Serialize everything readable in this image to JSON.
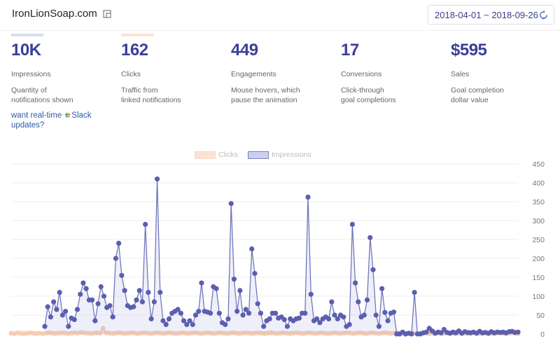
{
  "header": {
    "site_name": "IronLionSoap.com",
    "date_range": "2018-04-01 ~ 2018-09-26"
  },
  "metrics": [
    {
      "value": "10K",
      "label": "Impressions",
      "desc": "Quantity of\nnotifications shown",
      "color": "#d8dcf0"
    },
    {
      "value": "162",
      "label": "Clicks",
      "desc": "Traffic from\nlinked notifications",
      "color": "#fbe3d4"
    },
    {
      "value": "449",
      "label": "Engagements",
      "desc": "Mouse hovers, which\npause the animation",
      "color": ""
    },
    {
      "value": "17",
      "label": "Conversions",
      "desc": "Click-through\ngoal completions",
      "color": ""
    },
    {
      "value": "$595",
      "label": "Sales",
      "desc": "Goal completion\ndollar value",
      "color": ""
    }
  ],
  "promo": {
    "text_before": "want real-time ",
    "link_text": "Slack\nupdates?",
    "icon": "slack-icon"
  },
  "legend": [
    {
      "name": "Clicks",
      "color": "#f8d9c6"
    },
    {
      "name": "Impressions",
      "color": "#a9acd8"
    }
  ],
  "chart_data": {
    "type": "line",
    "ylim": [
      0,
      450
    ],
    "yticks": [
      0,
      50,
      100,
      150,
      200,
      250,
      300,
      350,
      400,
      450
    ],
    "series": [
      {
        "name": "Impressions",
        "color": "#4a4fa0",
        "values": [
          20,
          72,
          45,
          85,
          65,
          110,
          50,
          60,
          20,
          42,
          38,
          65,
          105,
          135,
          120,
          90,
          90,
          35,
          80,
          125,
          100,
          70,
          75,
          45,
          200,
          240,
          155,
          115,
          75,
          70,
          72,
          90,
          115,
          85,
          290,
          110,
          40,
          85,
          410,
          110,
          35,
          25,
          40,
          55,
          60,
          65,
          55,
          35,
          25,
          35,
          25,
          50,
          60,
          135,
          60,
          58,
          55,
          125,
          120,
          55,
          30,
          25,
          40,
          345,
          145,
          60,
          115,
          50,
          65,
          55,
          225,
          160,
          80,
          55,
          20,
          35,
          40,
          55,
          55,
          42,
          45,
          38,
          20,
          40,
          35,
          40,
          42,
          55,
          55,
          362,
          105,
          35,
          40,
          30,
          40,
          45,
          40,
          85,
          50,
          40,
          50,
          45,
          20,
          25,
          290,
          135,
          85,
          45,
          50,
          90,
          255,
          170,
          50,
          20,
          120,
          57,
          35,
          55,
          58,
          0,
          0,
          5,
          0,
          2,
          0,
          110,
          0,
          0,
          3,
          5,
          15,
          8,
          2,
          5,
          3,
          12,
          4,
          2,
          5,
          3,
          8,
          2,
          6,
          4,
          3,
          5,
          2,
          7,
          3,
          4,
          2,
          6,
          3,
          5,
          4,
          5,
          3,
          6,
          7,
          4,
          5
        ]
      },
      {
        "name": "Clicks",
        "color": "#f3c4a8",
        "values": [
          2,
          1,
          3,
          2,
          1,
          2,
          3,
          2,
          1,
          2,
          1,
          2,
          3,
          2,
          1,
          2,
          3,
          2,
          1,
          2,
          3,
          2,
          4,
          3,
          2,
          1,
          2,
          3,
          2,
          15,
          3,
          2,
          1,
          2,
          3,
          2,
          1,
          2,
          3,
          2,
          1,
          2,
          3,
          2,
          1,
          2,
          3,
          2,
          1,
          2,
          3,
          2,
          1,
          2,
          3,
          2,
          1,
          2,
          3,
          2,
          1,
          2,
          3,
          2,
          1,
          2,
          3,
          2,
          1,
          2,
          3,
          2,
          1,
          2,
          3,
          2,
          1,
          2,
          3,
          2,
          1,
          2,
          3,
          2,
          1,
          2,
          3,
          2,
          1,
          2,
          3,
          2,
          1,
          2,
          3,
          2,
          1,
          2,
          3,
          2,
          1,
          2,
          3,
          2,
          1,
          2,
          3,
          2,
          1,
          2,
          3,
          2,
          1,
          2,
          3,
          2,
          1,
          2,
          3,
          2,
          1,
          2,
          3,
          2,
          1,
          2,
          3,
          2,
          1,
          2,
          3,
          2,
          1,
          2,
          3,
          2,
          1,
          2,
          3,
          2,
          1,
          2,
          3,
          2,
          1,
          2,
          3,
          2,
          1,
          2,
          3,
          2,
          1,
          2,
          3,
          2,
          1,
          2,
          3,
          2,
          1
        ]
      }
    ]
  }
}
